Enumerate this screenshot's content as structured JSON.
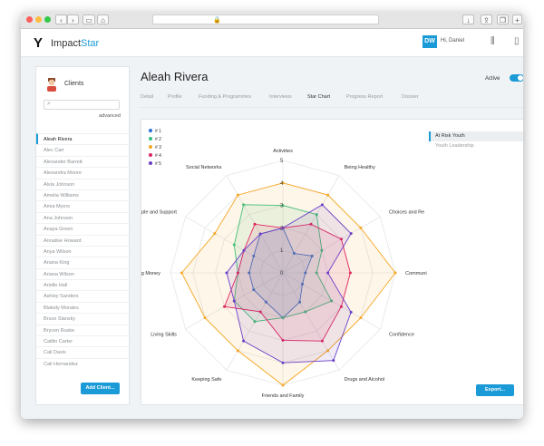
{
  "header": {
    "brand_prefix": "Impact",
    "brand_accent": "Star",
    "user_initials": "DW",
    "greeting": "Hi, Daniel"
  },
  "sidebar": {
    "title": "Clients",
    "search_placeholder": "",
    "advanced_label": "advanced",
    "clients": [
      "Aleah Rivera",
      "Alec Carr",
      "Alexander Barrett",
      "Alexandra Moore",
      "Alvia Johnson",
      "Amelia Williams",
      "Amia Myers",
      "Ana Johnson",
      "Anaya Green",
      "Annalise Howard",
      "Anya Wilson",
      "Ariana King",
      "Ariana Wilson",
      "Arielle Hall",
      "Ashley Sanders",
      "Blakely Morales",
      "Bruce Slansky",
      "Brycen Ruske",
      "Caitlin Carter",
      "Cali Davis",
      "Cali Hernandez"
    ],
    "add_client_label": "Add Client..."
  },
  "client": {
    "name": "Aleah Rivera",
    "status_label": "Active",
    "active": true
  },
  "tabs": [
    {
      "label": "Detail",
      "active": false
    },
    {
      "label": "Profile",
      "active": false
    },
    {
      "label": "Funding & Programmes",
      "active": false
    },
    {
      "label": "Interviews",
      "active": false
    },
    {
      "label": "Star Chart",
      "active": true
    },
    {
      "label": "Progress Report",
      "active": false
    },
    {
      "label": "Dossier",
      "active": false
    }
  ],
  "right_panel": {
    "items": [
      {
        "label": "At Risk Youth",
        "active": true
      },
      {
        "label": "Youth Leadership",
        "active": false
      }
    ],
    "export_label": "Export..."
  },
  "colors": {
    "accent": "#1a9ad6"
  },
  "chart_data": {
    "type": "radar",
    "axes": [
      "Activities",
      "Being Healthy",
      "Choices and Re",
      "Communi",
      "Confidence",
      "Drugs and Alcohol",
      "Friends and Family",
      "Keeping Safe",
      "Living Skills",
      "ng Money",
      "ople and Support",
      "Social Networks"
    ],
    "rlim": [
      0,
      5
    ],
    "tick_labels": [
      "0",
      "1",
      "2",
      "3",
      "4",
      "5"
    ],
    "series": [
      {
        "name": "# 1",
        "color": "#2b6fd6",
        "values": [
          2,
          1,
          1.5,
          1,
          1,
          1.5,
          2,
          1.5,
          1.5,
          1.5,
          1.5,
          2
        ]
      },
      {
        "name": "# 2",
        "color": "#2ec27e",
        "values": [
          3,
          3,
          2,
          1.5,
          2.5,
          2,
          2,
          2.5,
          2.5,
          2,
          2.5,
          3.5
        ]
      },
      {
        "name": "# 3",
        "color": "#f5a623",
        "values": [
          4,
          4,
          4,
          5,
          4,
          4,
          5,
          4,
          4,
          4.5,
          3.5,
          4
        ]
      },
      {
        "name": "# 4",
        "color": "#e0245e",
        "values": [
          2,
          2.5,
          3,
          3,
          3,
          3.5,
          3,
          2,
          3,
          2,
          2,
          2.5
        ]
      },
      {
        "name": "# 5",
        "color": "#6b3fc8",
        "values": [
          2,
          3.5,
          3.5,
          2,
          3.5,
          4.5,
          4,
          3.5,
          2.5,
          2.5,
          2,
          2
        ]
      }
    ],
    "legend": "top-left",
    "grid": true
  }
}
